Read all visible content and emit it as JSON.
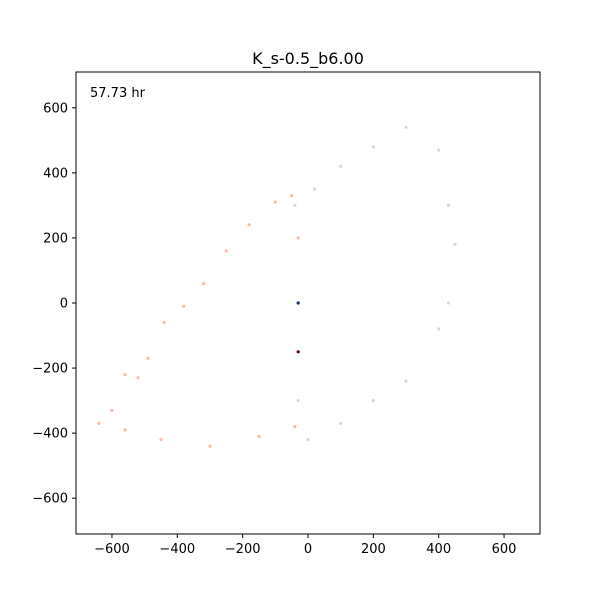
{
  "chart_data": {
    "type": "scatter",
    "title": "K_s-0.5_b6.00",
    "annotation": "57.73 hr",
    "xlabel": "",
    "ylabel": "",
    "xlim": [
      -710,
      710
    ],
    "ylim": [
      -710,
      710
    ],
    "x_ticks": [
      -600,
      -400,
      -200,
      0,
      200,
      400,
      600
    ],
    "y_ticks": [
      -600,
      -400,
      -200,
      0,
      200,
      400,
      600
    ],
    "x_tick_labels": [
      "−600",
      "−400",
      "−200",
      "0",
      "200",
      "400",
      "600"
    ],
    "y_tick_labels": [
      "−600",
      "−400",
      "−200",
      "0",
      "200",
      "400",
      "600"
    ],
    "grid": false,
    "legend": "none",
    "series": [
      {
        "color_map": "Reds",
        "core_color": "#67000d",
        "edge_color": "#fcbba1",
        "x_range": [
          -640,
          -20
        ],
        "y_range": [
          -440,
          340
        ],
        "core": [
          -80,
          -80
        ],
        "points": [
          [
            -640,
            -370
          ],
          [
            -600,
            -330
          ],
          [
            -560,
            -220
          ],
          [
            -520,
            -230
          ],
          [
            -490,
            -170
          ],
          [
            -440,
            -60
          ],
          [
            -380,
            -10
          ],
          [
            -320,
            60
          ],
          [
            -250,
            160
          ],
          [
            -180,
            240
          ],
          [
            -100,
            310
          ],
          [
            -50,
            330
          ],
          [
            -30,
            200
          ],
          [
            -30,
            -150
          ],
          [
            -40,
            -380
          ],
          [
            -150,
            -410
          ],
          [
            -300,
            -440
          ],
          [
            -450,
            -420
          ],
          [
            -560,
            -390
          ]
        ]
      },
      {
        "color_map": "Blues",
        "core_color": "#08306b",
        "edge_color": "#c6dbef",
        "x_range": [
          -40,
          450
        ],
        "y_range": [
          -420,
          550
        ],
        "core": [
          60,
          60
        ],
        "points": [
          [
            -40,
            300
          ],
          [
            20,
            350
          ],
          [
            100,
            420
          ],
          [
            200,
            480
          ],
          [
            300,
            540
          ],
          [
            400,
            470
          ],
          [
            430,
            300
          ],
          [
            450,
            180
          ],
          [
            430,
            0
          ],
          [
            400,
            -80
          ],
          [
            300,
            -240
          ],
          [
            200,
            -300
          ],
          [
            100,
            -370
          ],
          [
            0,
            -420
          ],
          [
            -30,
            -300
          ],
          [
            -30,
            0
          ]
        ]
      }
    ]
  }
}
